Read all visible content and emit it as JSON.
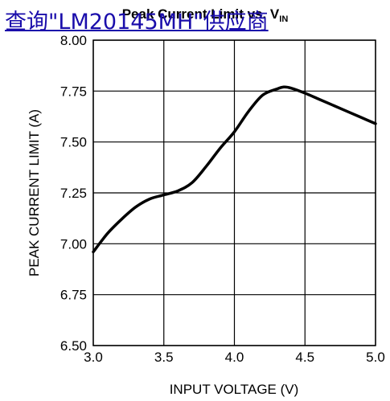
{
  "overlay_link": {
    "text": "查询\"LM20145MH\"供应商"
  },
  "chart_data": {
    "type": "line",
    "title": "Peak Current Limit vs. V",
    "title_subscript": "IN",
    "xlabel": "INPUT VOLTAGE (V)",
    "ylabel": "PEAK CURRENT LIMIT (A)",
    "xlim": [
      3.0,
      5.0
    ],
    "ylim": [
      6.5,
      8.0
    ],
    "x_ticks": [
      "3.0",
      "3.5",
      "4.0",
      "4.5",
      "5.0"
    ],
    "y_ticks": [
      "6.50",
      "6.75",
      "7.00",
      "7.25",
      "7.50",
      "7.75",
      "8.00"
    ],
    "grid": true,
    "series": [
      {
        "x": [
          3.0,
          3.1,
          3.2,
          3.3,
          3.4,
          3.5,
          3.6,
          3.7,
          3.8,
          3.9,
          4.0,
          4.1,
          4.2,
          4.3,
          4.35,
          4.4,
          4.5,
          4.6,
          4.7,
          4.8,
          4.9,
          5.0
        ],
        "y": [
          6.96,
          7.05,
          7.12,
          7.18,
          7.22,
          7.24,
          7.26,
          7.3,
          7.38,
          7.47,
          7.55,
          7.65,
          7.73,
          7.76,
          7.77,
          7.765,
          7.74,
          7.71,
          7.68,
          7.65,
          7.62,
          7.59
        ]
      }
    ]
  }
}
